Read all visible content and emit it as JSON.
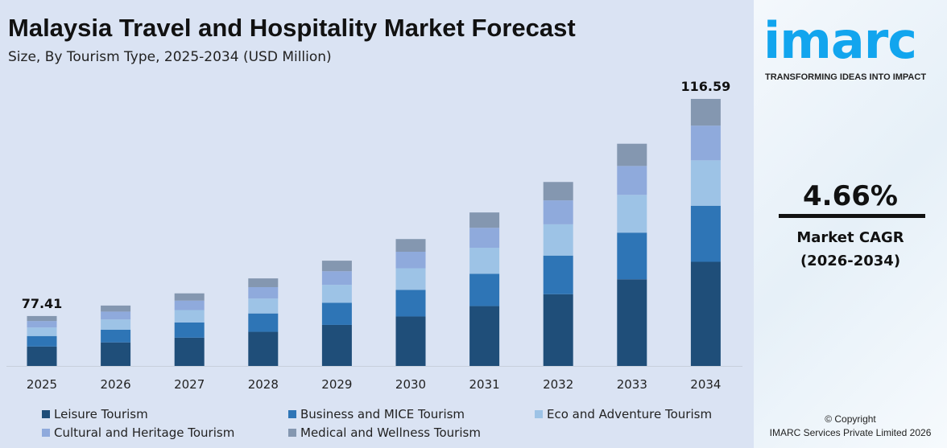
{
  "header": {
    "title": "Malaysia Travel and Hospitality Market Forecast",
    "subtitle": "Size, By Tourism Type, 2025-2034 (USD Million)"
  },
  "chart_data": {
    "type": "bar",
    "stacked": true,
    "categories": [
      "2025",
      "2026",
      "2027",
      "2028",
      "2029",
      "2030",
      "2031",
      "2032",
      "2033",
      "2034"
    ],
    "totals": [
      77.41,
      79.3,
      81.5,
      84.2,
      87.4,
      91.3,
      96.1,
      101.6,
      108.5,
      116.59
    ],
    "total_labels": {
      "2025": "77.41",
      "2034": "116.59"
    },
    "series": [
      {
        "name": "Leisure Tourism",
        "color": "#1f4e79",
        "share": 0.39
      },
      {
        "name": "Business and MICE Tourism",
        "color": "#2e75b6",
        "share": 0.21
      },
      {
        "name": "Eco and Adventure Tourism",
        "color": "#9dc3e6",
        "share": 0.17
      },
      {
        "name": "Cultural and Heritage Tourism",
        "color": "#8faadc",
        "share": 0.13
      },
      {
        "name": "Medical and Wellness Tourism",
        "color": "#8497b0",
        "share": 0.1
      }
    ],
    "ylim": [
      68.4,
      120
    ],
    "grid": false,
    "legend": "bottom"
  },
  "side": {
    "logo": "imarc",
    "tagline": "TRANSFORMING IDEAS INTO IMPACT",
    "cagr": "4.66%",
    "cagr_label": "Market CAGR",
    "cagr_period": "(2026-2034)",
    "copyright": "© Copyright",
    "company": "IMARC Services Private Limited 2026"
  }
}
